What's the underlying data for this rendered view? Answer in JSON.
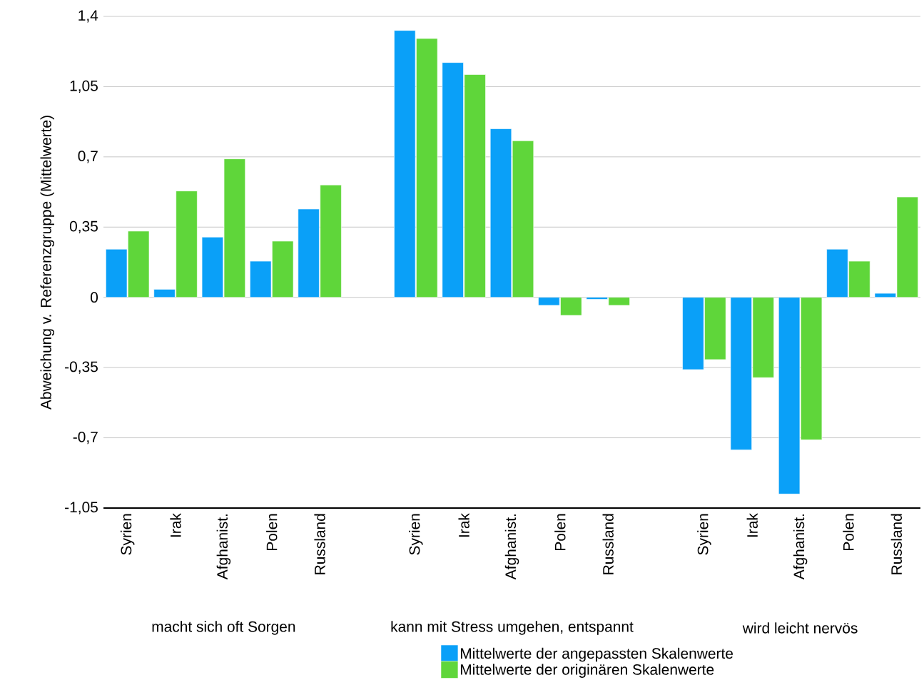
{
  "chart_data": {
    "type": "bar",
    "ylabel": "Abweichung v. Referenzgruppe (Mittelwerte)",
    "categories": [
      "Syrien",
      "Irak",
      "Afghanist.",
      "Polen",
      "Russland",
      null,
      "Syrien",
      "Irak",
      "Afghanist.",
      "Polen",
      "Russland",
      null,
      "Syrien",
      "Irak",
      "Afghanist.",
      "Polen",
      "Russland"
    ],
    "series": [
      {
        "name": "Mittelwerte der angepassten Skalenwerte",
        "color": "#0aa0f8",
        "values": [
          0.24,
          0.04,
          0.3,
          0.18,
          0.44,
          null,
          1.33,
          1.17,
          0.84,
          -0.04,
          -0.01,
          null,
          -0.36,
          -0.76,
          -0.98,
          0.24,
          0.02
        ]
      },
      {
        "name": "Mittelwerte der originären Skalenwerte",
        "color": "#5fd63a",
        "values": [
          0.33,
          0.53,
          0.69,
          0.28,
          0.56,
          null,
          1.29,
          1.11,
          0.78,
          -0.09,
          -0.04,
          null,
          -0.31,
          -0.4,
          -0.71,
          0.18,
          0.5
        ]
      }
    ],
    "annotations": [
      "macht sich oft Sorgen",
      "kann mit Stress umgehen, entspannt",
      "wird leicht nervös"
    ],
    "ylim": [
      -1.05,
      1.4
    ],
    "yticks": [
      {
        "value": -1.05,
        "label": "-1,05"
      },
      {
        "value": -0.7,
        "label": "-0,7"
      },
      {
        "value": -0.35,
        "label": "-0,35"
      },
      {
        "value": 0,
        "label": "0"
      },
      {
        "value": 0.35,
        "label": "0,35"
      },
      {
        "value": 0.7,
        "label": "0,7"
      },
      {
        "value": 1.05,
        "label": "1,05"
      },
      {
        "value": 1.4,
        "label": "1,4"
      }
    ],
    "grid": "y",
    "legend": "bottom"
  }
}
